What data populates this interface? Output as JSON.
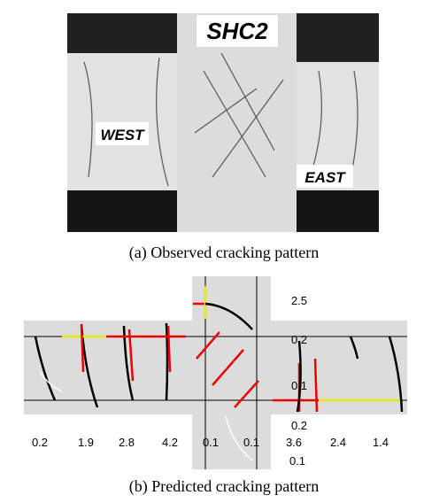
{
  "photo": {
    "specimen": "SHC2",
    "west": "WEST",
    "east": "EAST"
  },
  "captions": {
    "a": "(a) Observed cracking pattern",
    "b": "(b) Predicted cracking pattern"
  },
  "diagram": {
    "side_labels": [
      "2.5",
      "0.2",
      "0.1",
      "0.2"
    ],
    "bottom_labels": [
      "0.2",
      "1.9",
      "2.8",
      "4.2",
      "0.1",
      "0.1",
      "3.6",
      "2.4",
      "1.4"
    ],
    "under_label": "0.1"
  }
}
